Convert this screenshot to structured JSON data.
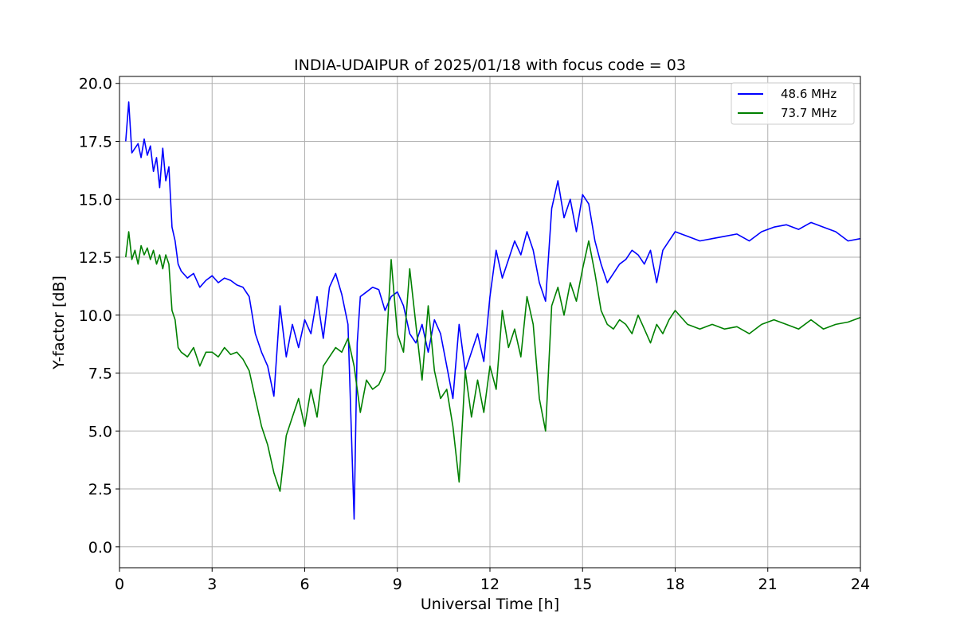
{
  "chart_data": {
    "type": "line",
    "title": "INDIA-UDAIPUR of 2025/01/18 with focus code = 03",
    "xlabel": "Universal Time [h]",
    "ylabel": "Y-factor [dB]",
    "xlim": [
      0,
      24
    ],
    "ylim": [
      -0.9,
      20.3
    ],
    "xticks": [
      0,
      3,
      6,
      9,
      12,
      15,
      18,
      21,
      24
    ],
    "xtick_labels": [
      "0",
      "3",
      "6",
      "9",
      "12",
      "15",
      "18",
      "21",
      "24"
    ],
    "yticks": [
      0,
      2.5,
      5,
      7.5,
      10,
      12.5,
      15,
      17.5,
      20
    ],
    "ytick_labels": [
      "0.0",
      "2.5",
      "5.0",
      "7.5",
      "10.0",
      "12.5",
      "15.0",
      "17.5",
      "20.0"
    ],
    "grid": true,
    "legend_position": "top-right",
    "series": [
      {
        "name": "48.6 MHz",
        "color": "#0000ff",
        "x": [
          0.2,
          0.3,
          0.4,
          0.5,
          0.6,
          0.7,
          0.8,
          0.9,
          1.0,
          1.1,
          1.2,
          1.3,
          1.4,
          1.5,
          1.6,
          1.7,
          1.8,
          1.9,
          2.0,
          2.2,
          2.4,
          2.6,
          2.8,
          3.0,
          3.2,
          3.4,
          3.6,
          3.8,
          4.0,
          4.2,
          4.4,
          4.6,
          4.8,
          5.0,
          5.2,
          5.4,
          5.6,
          5.8,
          6.0,
          6.2,
          6.4,
          6.6,
          6.8,
          7.0,
          7.2,
          7.4,
          7.6,
          7.7,
          7.8,
          8.0,
          8.2,
          8.4,
          8.6,
          8.8,
          9.0,
          9.2,
          9.4,
          9.6,
          9.8,
          10.0,
          10.2,
          10.4,
          10.6,
          10.8,
          11.0,
          11.2,
          11.4,
          11.6,
          11.8,
          12.0,
          12.2,
          12.4,
          12.6,
          12.8,
          13.0,
          13.2,
          13.4,
          13.6,
          13.8,
          14.0,
          14.2,
          14.4,
          14.6,
          14.8,
          15.0,
          15.2,
          15.4,
          15.6,
          15.8,
          16.0,
          16.2,
          16.4,
          16.6,
          16.8,
          17.0,
          17.2,
          17.4,
          17.6,
          17.8,
          18.0,
          18.4,
          18.8,
          19.2,
          19.6,
          20.0,
          20.4,
          20.8,
          21.2,
          21.6,
          22.0,
          22.4,
          22.8,
          23.2,
          23.6,
          24.0
        ],
        "values": [
          17.5,
          19.2,
          17.0,
          17.2,
          17.4,
          16.8,
          17.6,
          16.9,
          17.3,
          16.2,
          16.8,
          15.5,
          17.2,
          15.8,
          16.4,
          13.8,
          13.2,
          12.2,
          11.9,
          11.6,
          11.8,
          11.2,
          11.5,
          11.7,
          11.4,
          11.6,
          11.5,
          11.3,
          11.2,
          10.8,
          9.2,
          8.4,
          7.8,
          6.5,
          10.4,
          8.2,
          9.6,
          8.6,
          9.8,
          9.2,
          10.8,
          9.0,
          11.2,
          11.8,
          10.9,
          9.6,
          1.2,
          8.8,
          10.8,
          11.0,
          11.2,
          11.1,
          10.2,
          10.8,
          11.0,
          10.4,
          9.2,
          8.8,
          9.6,
          8.4,
          9.8,
          9.2,
          7.8,
          6.4,
          9.6,
          7.6,
          8.4,
          9.2,
          8.0,
          10.8,
          12.8,
          11.6,
          12.4,
          13.2,
          12.6,
          13.6,
          12.8,
          11.4,
          10.6,
          14.6,
          15.8,
          14.2,
          15.0,
          13.6,
          15.2,
          14.8,
          13.2,
          12.2,
          11.4,
          11.8,
          12.2,
          12.4,
          12.8,
          12.6,
          12.2,
          12.8,
          11.4,
          12.8,
          13.2,
          13.6,
          13.4,
          13.2,
          13.3,
          13.4,
          13.5,
          13.2,
          13.6,
          13.8,
          13.9,
          13.7,
          14.0,
          13.8,
          13.6,
          13.2,
          13.3
        ]
      },
      {
        "name": "73.7 MHz",
        "color": "#008000",
        "x": [
          0.2,
          0.3,
          0.4,
          0.5,
          0.6,
          0.7,
          0.8,
          0.9,
          1.0,
          1.1,
          1.2,
          1.3,
          1.4,
          1.5,
          1.6,
          1.7,
          1.8,
          1.9,
          2.0,
          2.2,
          2.4,
          2.6,
          2.8,
          3.0,
          3.2,
          3.4,
          3.6,
          3.8,
          4.0,
          4.2,
          4.4,
          4.6,
          4.8,
          5.0,
          5.2,
          5.4,
          5.6,
          5.8,
          6.0,
          6.2,
          6.4,
          6.6,
          6.8,
          7.0,
          7.2,
          7.4,
          7.6,
          7.7,
          7.8,
          8.0,
          8.2,
          8.4,
          8.6,
          8.8,
          9.0,
          9.2,
          9.4,
          9.6,
          9.8,
          10.0,
          10.2,
          10.4,
          10.6,
          10.8,
          11.0,
          11.2,
          11.4,
          11.6,
          11.8,
          12.0,
          12.2,
          12.4,
          12.6,
          12.8,
          13.0,
          13.2,
          13.4,
          13.6,
          13.8,
          14.0,
          14.2,
          14.4,
          14.6,
          14.8,
          15.0,
          15.2,
          15.4,
          15.6,
          15.8,
          16.0,
          16.2,
          16.4,
          16.6,
          16.8,
          17.0,
          17.2,
          17.4,
          17.6,
          17.8,
          18.0,
          18.4,
          18.8,
          19.2,
          19.6,
          20.0,
          20.4,
          20.8,
          21.2,
          21.6,
          22.0,
          22.4,
          22.8,
          23.2,
          23.6,
          24.0
        ],
        "values": [
          12.5,
          13.6,
          12.4,
          12.8,
          12.2,
          13.0,
          12.6,
          12.9,
          12.4,
          12.8,
          12.2,
          12.6,
          12.0,
          12.6,
          12.2,
          10.2,
          9.8,
          8.6,
          8.4,
          8.2,
          8.6,
          7.8,
          8.4,
          8.4,
          8.2,
          8.6,
          8.3,
          8.4,
          8.1,
          7.6,
          6.4,
          5.2,
          4.4,
          3.2,
          2.4,
          4.8,
          5.6,
          6.4,
          5.2,
          6.8,
          5.6,
          7.8,
          8.2,
          8.6,
          8.4,
          9.0,
          7.8,
          6.8,
          5.8,
          7.2,
          6.8,
          7.0,
          7.6,
          12.4,
          9.2,
          8.4,
          12.0,
          9.6,
          7.2,
          10.4,
          7.6,
          6.4,
          6.8,
          5.2,
          2.8,
          7.6,
          5.6,
          7.2,
          5.8,
          7.8,
          6.8,
          10.2,
          8.6,
          9.4,
          8.2,
          10.8,
          9.6,
          6.4,
          5.0,
          10.4,
          11.2,
          10.0,
          11.4,
          10.6,
          12.0,
          13.2,
          11.8,
          10.2,
          9.6,
          9.4,
          9.8,
          9.6,
          9.2,
          10.0,
          9.4,
          8.8,
          9.6,
          9.2,
          9.8,
          10.2,
          9.6,
          9.4,
          9.6,
          9.4,
          9.5,
          9.2,
          9.6,
          9.8,
          9.6,
          9.4,
          9.8,
          9.4,
          9.6,
          9.7,
          9.9
        ]
      }
    ]
  }
}
